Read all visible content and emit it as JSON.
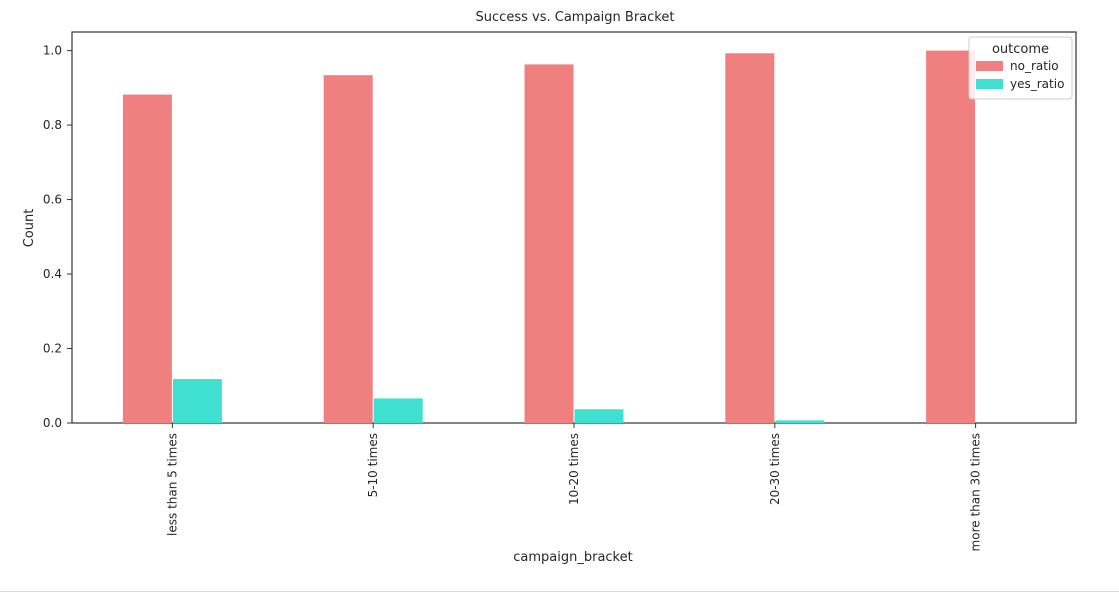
{
  "chart_data": {
    "type": "bar",
    "title": "Success vs. Campaign Bracket",
    "xlabel": "campaign_bracket",
    "ylabel": "Count",
    "categories": [
      "less than 5 times",
      "5-10 times",
      "10-20 times",
      "20-30 times",
      "more than 30 times"
    ],
    "series": [
      {
        "name": "no_ratio",
        "color": "#f08080",
        "values": [
          0.882,
          0.934,
          0.963,
          0.993,
          1.0
        ]
      },
      {
        "name": "yes_ratio",
        "color": "#40e0d0",
        "values": [
          0.118,
          0.066,
          0.037,
          0.007,
          0.0
        ]
      }
    ],
    "ylim": [
      0,
      1.05
    ],
    "yticks": [
      "0.0",
      "0.2",
      "0.4",
      "0.6",
      "0.8",
      "1.0"
    ],
    "grid": false,
    "legend": {
      "title": "outcome",
      "position": "top-right"
    }
  }
}
